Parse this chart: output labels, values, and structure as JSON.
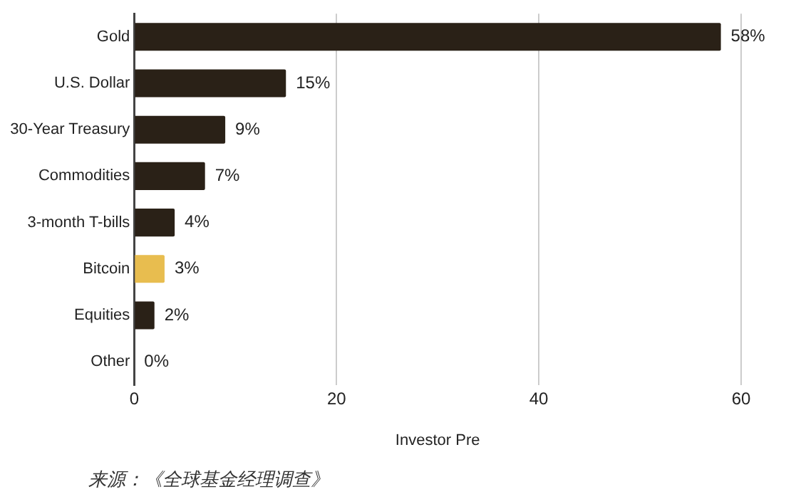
{
  "chart_data": {
    "type": "bar",
    "orientation": "horizontal",
    "xlabel": "Investor Pre",
    "categories": [
      "Gold",
      "U.S. Dollar",
      "30-Year Treasury",
      "Commodities",
      "3-month T-bills",
      "Bitcoin",
      "Equities",
      "Other"
    ],
    "values": [
      58,
      15,
      9,
      7,
      4,
      3,
      2,
      0
    ],
    "value_labels": [
      "58%",
      "15%",
      "9%",
      "7%",
      "4%",
      "3%",
      "2%",
      "0%"
    ],
    "colors": [
      "#2a2117",
      "#2a2117",
      "#2a2117",
      "#2a2117",
      "#2a2117",
      "#e8bd4f",
      "#2a2117",
      "#2a2117"
    ],
    "xlim": [
      0,
      60
    ],
    "xticks": [
      0,
      20,
      40,
      60
    ],
    "grid": "x",
    "legend": false,
    "annotations": [
      "来源：《全球基金经理调查》"
    ]
  }
}
